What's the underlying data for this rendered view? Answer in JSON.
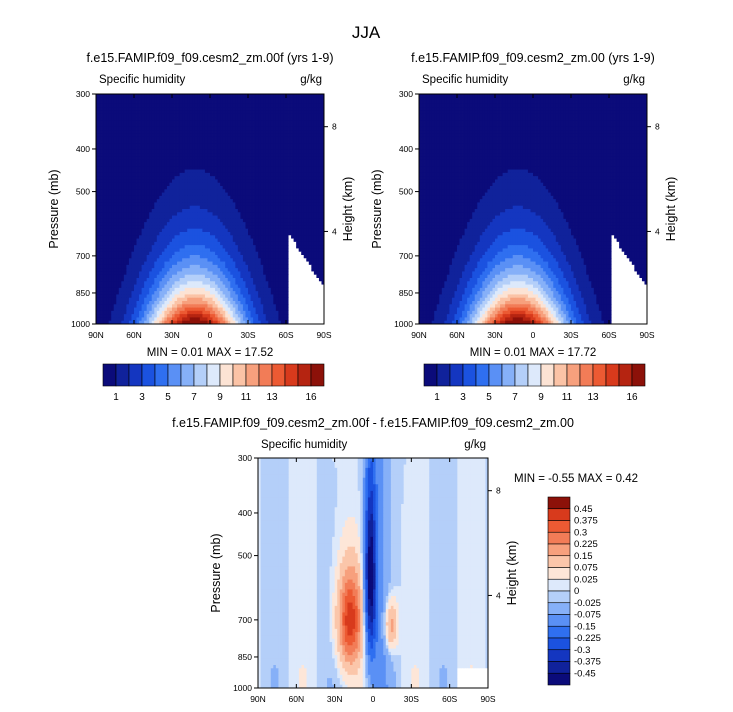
{
  "page": {
    "title": "JJA"
  },
  "chart_data": [
    {
      "type": "heatmap",
      "panel_title": "f.e15.FAMIP.f09_f09.cesm2_zm.00f (yrs 1-9)",
      "variable": "Specific humidity",
      "units": "g/kg",
      "xlabel": "",
      "ylabel": "Pressure (mb)",
      "y2label": "Height (km)",
      "x_ticks": [
        "90N",
        "60N",
        "30N",
        "0",
        "30S",
        "60S",
        "90S"
      ],
      "x_tick_values": [
        90,
        60,
        30,
        0,
        -30,
        -60,
        -90
      ],
      "y_ticks": [
        300,
        400,
        500,
        700,
        850,
        1000
      ],
      "y_scale": "log",
      "ylim": [
        1000,
        300
      ],
      "xlim": [
        90,
        -90
      ],
      "y2_ticks": [
        8,
        4
      ],
      "stats": "MIN =  0.01  MAX =  17.52",
      "min": 0.01,
      "max": 17.52,
      "peak_lat": 12,
      "colorbar_labels": [
        "1",
        "3",
        "5",
        "7",
        "9",
        "11",
        "13",
        "16"
      ],
      "colorbar_orientation": "horizontal"
    },
    {
      "type": "heatmap",
      "panel_title": "f.e15.FAMIP.f09_f09.cesm2_zm.00 (yrs 1-9)",
      "variable": "Specific humidity",
      "units": "g/kg",
      "xlabel": "",
      "ylabel": "Pressure (mb)",
      "y2label": "Height (km)",
      "x_ticks": [
        "90N",
        "60N",
        "30N",
        "0",
        "30S",
        "60S",
        "90S"
      ],
      "x_tick_values": [
        90,
        60,
        30,
        0,
        -30,
        -60,
        -90
      ],
      "y_ticks": [
        300,
        400,
        500,
        700,
        850,
        1000
      ],
      "y_scale": "log",
      "ylim": [
        1000,
        300
      ],
      "xlim": [
        90,
        -90
      ],
      "y2_ticks": [
        8,
        4
      ],
      "stats": "MIN =  0.01  MAX =  17.72",
      "min": 0.01,
      "max": 17.72,
      "peak_lat": 12,
      "colorbar_labels": [
        "1",
        "3",
        "5",
        "7",
        "9",
        "11",
        "13",
        "16"
      ],
      "colorbar_orientation": "horizontal"
    },
    {
      "type": "heatmap",
      "panel_title": "f.e15.FAMIP.f09_f09.cesm2_zm.00f - f.e15.FAMIP.f09_f09.cesm2_zm.00",
      "variable": "Specific humidity",
      "units": "g/kg",
      "xlabel": "",
      "ylabel": "Pressure (mb)",
      "y2label": "Height (km)",
      "x_ticks": [
        "90N",
        "60N",
        "30N",
        "0",
        "30S",
        "60S",
        "90S"
      ],
      "x_tick_values": [
        90,
        60,
        30,
        0,
        -30,
        -60,
        -90
      ],
      "y_ticks": [
        300,
        400,
        500,
        700,
        850,
        1000
      ],
      "y_scale": "log",
      "ylim": [
        1000,
        300
      ],
      "xlim": [
        90,
        -90
      ],
      "y2_ticks": [
        8,
        4
      ],
      "stats": "MIN =  -0.55  MAX =  0.42",
      "min": -0.55,
      "max": 0.42,
      "colorbar_labels": [
        "0.45",
        "0.375",
        "0.3",
        "0.225",
        "0.15",
        "0.075",
        "0.025",
        "0",
        "-0.025",
        "-0.075",
        "-0.15",
        "-0.225",
        "-0.3",
        "-0.375",
        "-0.45"
      ],
      "colorbar_orientation": "vertical"
    }
  ],
  "colors": {
    "colormap": [
      "#0b0b7a",
      "#10229b",
      "#1436c0",
      "#1b52e0",
      "#2f6ff0",
      "#5a90f5",
      "#86b0f8",
      "#b4cff9",
      "#dde9fb",
      "#fce3d4",
      "#fbc3a6",
      "#f7a07d",
      "#f27c57",
      "#ec5a33",
      "#d83a1c",
      "#b52411",
      "#8c1109"
    ],
    "diff_colormap": [
      "#0b0b7a",
      "#10229b",
      "#1436c0",
      "#1b52e0",
      "#2f6ff0",
      "#5a90f5",
      "#86b0f8",
      "#b4cff9",
      "#dde9fb",
      "#fde6d8",
      "#fbc6aa",
      "#f7a07d",
      "#f27c57",
      "#ec5a33",
      "#d83a1c",
      "#8c1109"
    ]
  }
}
